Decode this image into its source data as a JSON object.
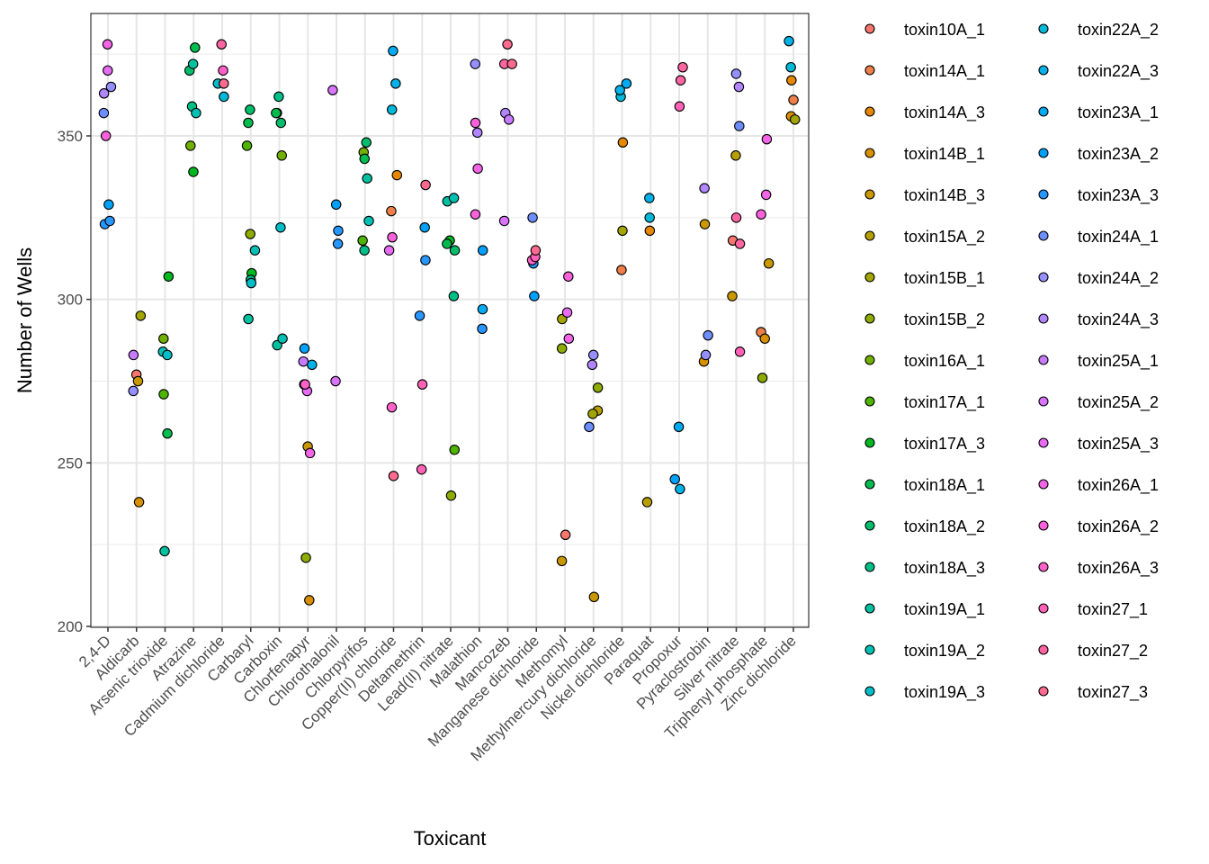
{
  "chart_data": {
    "type": "scatter",
    "title": "",
    "xlabel": "Toxicant",
    "ylabel": "Number of Wells",
    "ylim": [
      200,
      380
    ],
    "yticks": [
      200,
      250,
      300,
      350
    ],
    "grid": true,
    "jittered": true,
    "legend_position": "right",
    "legend_columns": 2,
    "categories": [
      "2,4-D",
      "Aldicarb",
      "Arsenic trioxide",
      "Atrazine",
      "Cadmium dichloride",
      "Carbaryl",
      "Carboxin",
      "Chlorfenapyr",
      "Chlorothalonil",
      "Chlorpyrifos",
      "Copper(II) chloride",
      "Deltamethrin",
      "Lead(II) nitrate",
      "Malathion",
      "Mancozeb",
      "Manganese dichloride",
      "Methomyl",
      "Methylmercury dichloride",
      "Nickel dichloride",
      "Paraquat",
      "Propoxur",
      "Pyraclostrobin",
      "Silver nitrate",
      "Triphenyl phosphate",
      "Zinc dichloride"
    ],
    "series": [
      {
        "name": "toxin10A_1",
        "color": "#F8766D",
        "points": [
          [
            "Aldicarb",
            277
          ],
          [
            "Methomyl",
            228
          ],
          [
            "Silver nitrate",
            318
          ]
        ]
      },
      {
        "name": "toxin14A_1",
        "color": "#EF7F49",
        "points": [
          [
            "Copper(II) chloride",
            327
          ],
          [
            "Nickel dichloride",
            309
          ],
          [
            "Zinc dichloride",
            361
          ],
          [
            "Triphenyl phosphate",
            290
          ]
        ]
      },
      {
        "name": "toxin14A_3",
        "color": "#E58700",
        "points": [
          [
            "Copper(II) chloride",
            338
          ],
          [
            "Nickel dichloride",
            348
          ],
          [
            "Paraquat",
            321
          ],
          [
            "Zinc dichloride",
            367
          ]
        ]
      },
      {
        "name": "toxin14B_1",
        "color": "#D89000",
        "points": [
          [
            "Aldicarb",
            238
          ],
          [
            "Chlorfenapyr",
            208
          ],
          [
            "Pyraclostrobin",
            281
          ],
          [
            "Triphenyl phosphate",
            288
          ],
          [
            "Zinc dichloride",
            356
          ]
        ]
      },
      {
        "name": "toxin14B_3",
        "color": "#C99800",
        "points": [
          [
            "Aldicarb",
            275
          ],
          [
            "Methomyl",
            220
          ],
          [
            "Methylmercury dichloride",
            209
          ],
          [
            "Chlorfenapyr",
            255
          ],
          [
            "Pyraclostrobin",
            323
          ],
          [
            "Silver nitrate",
            301
          ],
          [
            "Triphenyl phosphate",
            311
          ]
        ]
      },
      {
        "name": "toxin15A_2",
        "color": "#B79F00",
        "points": [
          [
            "Methylmercury dichloride",
            266
          ],
          [
            "Paraquat",
            238
          ],
          [
            "Silver nitrate",
            344
          ]
        ]
      },
      {
        "name": "toxin15B_1",
        "color": "#A3A500",
        "points": [
          [
            "Aldicarb",
            295
          ],
          [
            "Methomyl",
            294
          ],
          [
            "Methylmercury dichloride",
            265
          ],
          [
            "Nickel dichloride",
            321
          ],
          [
            "Zinc dichloride",
            355
          ]
        ]
      },
      {
        "name": "toxin15B_2",
        "color": "#8EAB00",
        "points": [
          [
            "Chlorfenapyr",
            221
          ],
          [
            "Methomyl",
            285
          ],
          [
            "Methylmercury dichloride",
            273
          ],
          [
            "Carbaryl",
            320
          ],
          [
            "Triphenyl phosphate",
            276
          ],
          [
            "Lead(II) nitrate",
            240
          ]
        ]
      },
      {
        "name": "toxin16A_1",
        "color": "#72B000",
        "points": [
          [
            "Arsenic trioxide",
            288
          ],
          [
            "Atrazine",
            347
          ],
          [
            "Carboxin",
            344
          ],
          [
            "Chlorpyrifos",
            345
          ]
        ]
      },
      {
        "name": "toxin17A_1",
        "color": "#4DB400",
        "points": [
          [
            "Arsenic trioxide",
            271
          ],
          [
            "Carbaryl",
            347
          ],
          [
            "Lead(II) nitrate",
            254
          ],
          [
            "Chlorpyrifos",
            318
          ]
        ]
      },
      {
        "name": "toxin17A_3",
        "color": "#00B81F",
        "points": [
          [
            "Arsenic trioxide",
            307
          ],
          [
            "Atrazine",
            339
          ],
          [
            "Carboxin",
            357
          ],
          [
            "Carbaryl",
            308
          ],
          [
            "Lead(II) nitrate",
            318
          ]
        ]
      },
      {
        "name": "toxin18A_1",
        "color": "#00BB4E",
        "points": [
          [
            "Arsenic trioxide",
            259
          ],
          [
            "Atrazine",
            377
          ],
          [
            "Carboxin",
            357
          ],
          [
            "Carbaryl",
            354
          ],
          [
            "Chlorpyrifos",
            343
          ],
          [
            "Lead(II) nitrate",
            317
          ]
        ]
      },
      {
        "name": "toxin18A_2",
        "color": "#00BE6C",
        "points": [
          [
            "Atrazine",
            370
          ],
          [
            "Carbaryl",
            358
          ],
          [
            "Carboxin",
            354
          ],
          [
            "Chlorpyrifos",
            348
          ],
          [
            "Lead(II) nitrate",
            315
          ]
        ]
      },
      {
        "name": "toxin18A_3",
        "color": "#00C087",
        "points": [
          [
            "Atrazine",
            359
          ],
          [
            "Carboxin",
            362
          ],
          [
            "Carbaryl",
            306
          ],
          [
            "Chlorpyrifos",
            315
          ],
          [
            "Lead(II) nitrate",
            301
          ]
        ]
      },
      {
        "name": "toxin19A_1",
        "color": "#00C19F",
        "points": [
          [
            "Arsenic trioxide",
            223
          ],
          [
            "Atrazine",
            372
          ],
          [
            "Carboxin",
            286
          ],
          [
            "Carbaryl",
            294
          ],
          [
            "Chlorpyrifos",
            337
          ],
          [
            "Lead(II) nitrate",
            330
          ]
        ]
      },
      {
        "name": "toxin19A_2",
        "color": "#00C0B4",
        "points": [
          [
            "Arsenic trioxide",
            284
          ],
          [
            "Atrazine",
            357
          ],
          [
            "Carboxin",
            288
          ],
          [
            "Carbaryl",
            315
          ],
          [
            "Chlorpyrifos",
            324
          ],
          [
            "Lead(II) nitrate",
            331
          ]
        ]
      },
      {
        "name": "toxin19A_3",
        "color": "#00BDC8",
        "points": [
          [
            "Arsenic trioxide",
            283
          ],
          [
            "Carboxin",
            322
          ],
          [
            "Carbaryl",
            305
          ],
          [
            "Cadmium dichloride",
            366
          ]
        ]
      },
      {
        "name": "toxin22A_2",
        "color": "#00B8D8",
        "points": [
          [
            "Copper(II) chloride",
            358
          ],
          [
            "Nickel dichloride",
            362
          ],
          [
            "Zinc dichloride",
            371
          ],
          [
            "Paraquat",
            325
          ],
          [
            "Cadmium dichloride",
            362
          ]
        ]
      },
      {
        "name": "toxin22A_3",
        "color": "#00B2E7",
        "points": [
          [
            "Copper(II) chloride",
            366
          ],
          [
            "Nickel dichloride",
            364
          ],
          [
            "Chlorfenapyr",
            280
          ],
          [
            "Zinc dichloride",
            379
          ],
          [
            "Paraquat",
            331
          ],
          [
            "Propoxur",
            242
          ]
        ]
      },
      {
        "name": "toxin23A_1",
        "color": "#00ABF3",
        "points": [
          [
            "Copper(II) chloride",
            376
          ],
          [
            "Chlorfenapyr",
            274
          ],
          [
            "Nickel dichloride",
            366
          ],
          [
            "Propoxur",
            261
          ],
          [
            "Malathion",
            297
          ]
        ]
      },
      {
        "name": "toxin23A_2",
        "color": "#00A1FD",
        "points": [
          [
            "2,4-D",
            329
          ],
          [
            "Chlorothalonil",
            329
          ],
          [
            "Chlorfenapyr",
            285
          ],
          [
            "Deltamethrin",
            322
          ],
          [
            "Malathion",
            315
          ],
          [
            "Manganese dichloride",
            301
          ],
          [
            "Propoxur",
            245
          ]
        ]
      },
      {
        "name": "toxin23A_3",
        "color": "#2896FF",
        "points": [
          [
            "2,4-D",
            323
          ],
          [
            "2,4-D",
            324
          ],
          [
            "Chlorothalonil",
            321
          ],
          [
            "Chlorothalonil",
            317
          ],
          [
            "Deltamethrin",
            312
          ],
          [
            "Deltamethrin",
            295
          ],
          [
            "Malathion",
            291
          ],
          [
            "Manganese dichloride",
            311
          ]
        ]
      },
      {
        "name": "toxin24A_1",
        "color": "#6C8EFF",
        "points": [
          [
            "2,4-D",
            357
          ],
          [
            "Manganese dichloride",
            325
          ],
          [
            "Methylmercury dichloride",
            261
          ],
          [
            "Pyraclostrobin",
            289
          ],
          [
            "Silver nitrate",
            353
          ]
        ]
      },
      {
        "name": "toxin24A_2",
        "color": "#9590FF",
        "points": [
          [
            "2,4-D",
            365
          ],
          [
            "Aldicarb",
            272
          ],
          [
            "Methylmercury dichloride",
            283
          ],
          [
            "Malathion",
            372
          ],
          [
            "Pyraclostrobin",
            283
          ],
          [
            "Silver nitrate",
            369
          ]
        ]
      },
      {
        "name": "toxin24A_3",
        "color": "#B186FF",
        "points": [
          [
            "2,4-D",
            363
          ],
          [
            "Methylmercury dichloride",
            280
          ],
          [
            "Mancozeb",
            357
          ],
          [
            "Malathion",
            351
          ],
          [
            "Silver nitrate",
            365
          ],
          [
            "Pyraclostrobin",
            334
          ]
        ]
      },
      {
        "name": "toxin25A_1",
        "color": "#C77CFF",
        "points": [
          [
            "Aldicarb",
            283
          ],
          [
            "Chlorfenapyr",
            281
          ],
          [
            "Mancozeb",
            355
          ]
        ]
      },
      {
        "name": "toxin25A_2",
        "color": "#D874FD",
        "points": [
          [
            "Chlorothalonil",
            364
          ],
          [
            "Chlorothalonil",
            275
          ],
          [
            "Mancozeb",
            324
          ]
        ]
      },
      {
        "name": "toxin25A_3",
        "color": "#E76BF3",
        "points": [
          [
            "2,4-D",
            370
          ],
          [
            "Chlorfenapyr",
            272
          ],
          [
            "Copper(II) chloride",
            315
          ],
          [
            "Methomyl",
            296
          ]
        ]
      },
      {
        "name": "toxin26A_1",
        "color": "#F265E6",
        "points": [
          [
            "2,4-D",
            378
          ],
          [
            "Chlorfenapyr",
            253
          ],
          [
            "Malathion",
            340
          ],
          [
            "Methomyl",
            288
          ],
          [
            "Triphenyl phosphate",
            349
          ],
          [
            "Triphenyl phosphate",
            332
          ]
        ]
      },
      {
        "name": "toxin26A_2",
        "color": "#FA62DB",
        "points": [
          [
            "2,4-D",
            350
          ],
          [
            "Copper(II) chloride",
            319
          ],
          [
            "Malathion",
            354
          ],
          [
            "Methomyl",
            307
          ],
          [
            "Triphenyl phosphate",
            326
          ],
          [
            "Malathion",
            326
          ]
        ]
      },
      {
        "name": "toxin26A_3",
        "color": "#FF61C9",
        "points": [
          [
            "Chlorfenapyr",
            274
          ],
          [
            "Copper(II) chloride",
            267
          ],
          [
            "Manganese dichloride",
            312
          ],
          [
            "Cadmium dichloride",
            370
          ]
        ]
      },
      {
        "name": "toxin27_1",
        "color": "#FF62B6",
        "points": [
          [
            "Deltamethrin",
            248
          ],
          [
            "Manganese dichloride",
            313
          ],
          [
            "Propoxur",
            359
          ],
          [
            "Silver nitrate",
            284
          ],
          [
            "Deltamethrin",
            274
          ]
        ]
      },
      {
        "name": "toxin27_2",
        "color": "#FF65A2",
        "points": [
          [
            "Cadmium dichloride",
            378
          ],
          [
            "Mancozeb",
            372
          ],
          [
            "Propoxur",
            371
          ],
          [
            "Propoxur",
            367
          ],
          [
            "Silver nitrate",
            325
          ],
          [
            "Silver nitrate",
            317
          ]
        ]
      },
      {
        "name": "toxin27_3",
        "color": "#FF6A8F",
        "points": [
          [
            "Cadmium dichloride",
            366
          ],
          [
            "Mancozeb",
            378
          ],
          [
            "Mancozeb",
            372
          ],
          [
            "Deltamethrin",
            335
          ],
          [
            "Manganese dichloride",
            315
          ],
          [
            "Copper(II) chloride",
            246
          ]
        ]
      }
    ]
  }
}
